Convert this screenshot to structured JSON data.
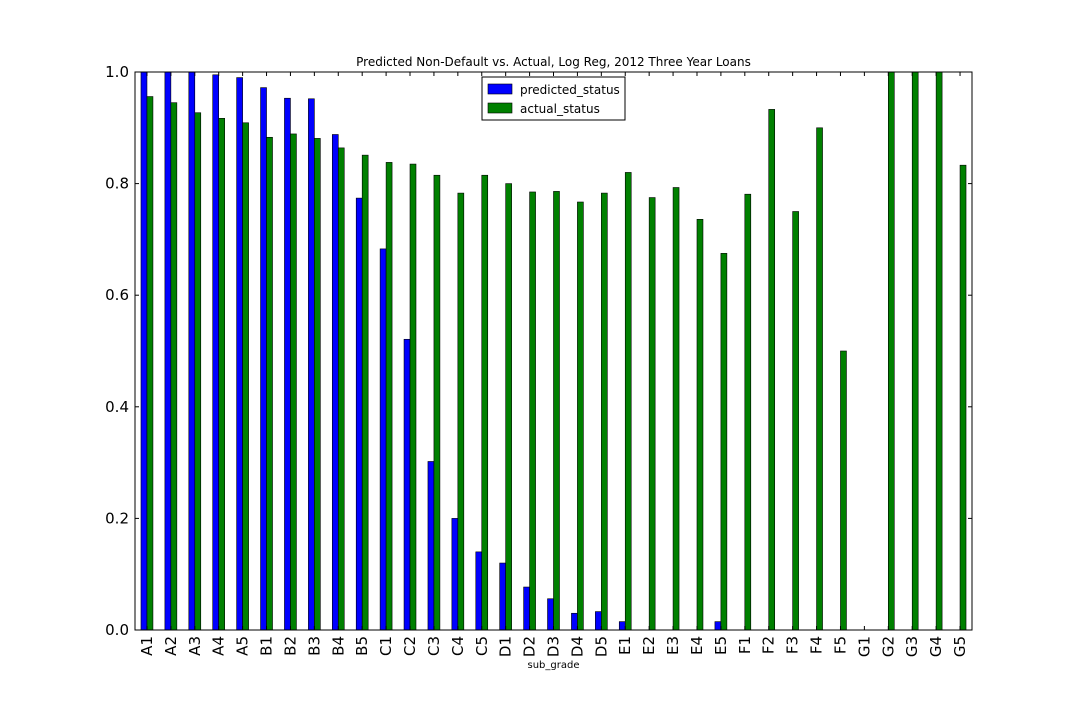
{
  "chart_data": {
    "type": "bar",
    "title": "Predicted Non-Default vs. Actual, Log Reg, 2012 Three Year Loans",
    "xlabel": "sub_grade",
    "ylabel": "",
    "ylim": [
      0,
      1.0
    ],
    "yticks": [
      "0.0",
      "0.2",
      "0.4",
      "0.6",
      "0.8",
      "1.0"
    ],
    "grid": false,
    "legend_position": "top-center",
    "categories": [
      "A1",
      "A2",
      "A3",
      "A4",
      "A5",
      "B1",
      "B2",
      "B3",
      "B4",
      "B5",
      "C1",
      "C2",
      "C3",
      "C4",
      "C5",
      "D1",
      "D2",
      "D3",
      "D4",
      "D5",
      "E1",
      "E2",
      "E3",
      "E4",
      "E5",
      "F1",
      "F2",
      "F3",
      "F4",
      "F5",
      "G1",
      "G2",
      "G3",
      "G4",
      "G5"
    ],
    "series": [
      {
        "name": "predicted_status",
        "color": "#0000ff",
        "values": [
          1.0,
          1.0,
          1.0,
          0.995,
          0.99,
          0.972,
          0.953,
          0.952,
          0.888,
          0.774,
          0.683,
          0.521,
          0.302,
          0.2,
          0.14,
          0.12,
          0.077,
          0.056,
          0.03,
          0.033,
          0.015,
          0,
          0,
          0,
          0.015,
          0,
          0,
          0,
          0,
          0,
          0,
          0,
          0,
          0,
          0
        ]
      },
      {
        "name": "actual_status",
        "color": "#008000",
        "values": [
          0.956,
          0.945,
          0.927,
          0.917,
          0.909,
          0.883,
          0.889,
          0.881,
          0.864,
          0.851,
          0.838,
          0.835,
          0.815,
          0.783,
          0.815,
          0.8,
          0.785,
          0.786,
          0.767,
          0.783,
          0.82,
          0.775,
          0.793,
          0.736,
          0.675,
          0.781,
          0.933,
          0.75,
          0.9,
          0.5,
          0,
          1.0,
          1.0,
          1.0,
          0.833
        ]
      }
    ]
  }
}
